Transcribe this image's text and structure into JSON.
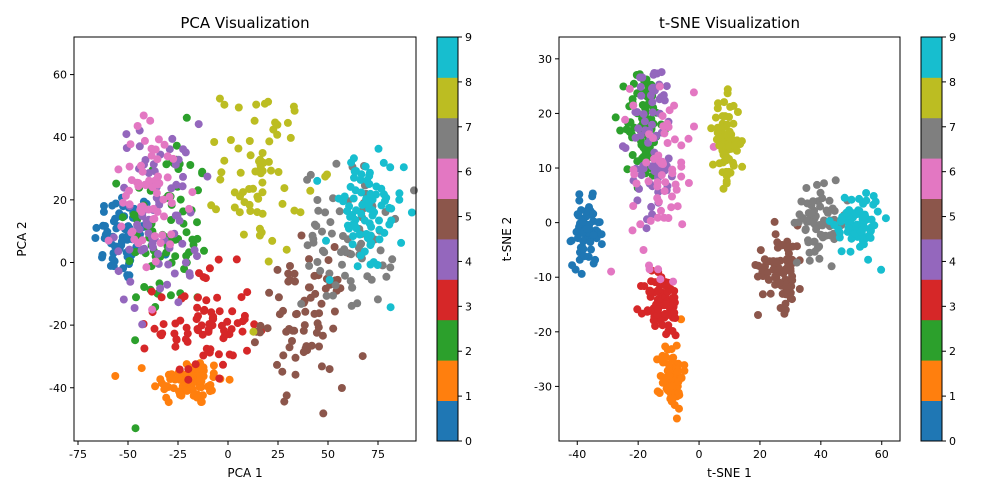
{
  "chart_data": [
    {
      "type": "scatter",
      "title": "PCA Visualization",
      "xlabel": "PCA 1",
      "ylabel": "PCA 2",
      "xlim": [
        -77,
        94
      ],
      "ylim": [
        -57,
        72
      ],
      "xticks": [
        -75,
        -50,
        -25,
        0,
        25,
        50,
        75
      ],
      "yticks": [
        -40,
        -20,
        0,
        20,
        40,
        60
      ],
      "grid": false,
      "colormap": "tab10",
      "colorbar": {
        "ticks": [
          0,
          1,
          2,
          3,
          4,
          5,
          6,
          7,
          8,
          9
        ],
        "range": [
          0,
          9
        ]
      },
      "clusters": [
        {
          "digit": 0,
          "cx": -52,
          "cy": 8,
          "sx": 10,
          "sy": 10,
          "n": 70
        },
        {
          "digit": 1,
          "cx": -20,
          "cy": -38,
          "sx": 12,
          "sy": 5,
          "n": 75
        },
        {
          "digit": 2,
          "cx": -30,
          "cy": 10,
          "sx": 14,
          "sy": 20,
          "n": 80
        },
        {
          "digit": 3,
          "cx": -12,
          "cy": -20,
          "sx": 16,
          "sy": 12,
          "n": 80
        },
        {
          "digit": 4,
          "cx": -35,
          "cy": 15,
          "sx": 14,
          "sy": 20,
          "n": 75
        },
        {
          "digit": 5,
          "cx": 38,
          "cy": -18,
          "sx": 14,
          "sy": 14,
          "n": 75
        },
        {
          "digit": 6,
          "cx": -38,
          "cy": 20,
          "sx": 14,
          "sy": 17,
          "n": 65
        },
        {
          "digit": 7,
          "cx": 60,
          "cy": 8,
          "sx": 15,
          "sy": 15,
          "n": 75
        },
        {
          "digit": 8,
          "cx": 18,
          "cy": 30,
          "sx": 14,
          "sy": 18,
          "n": 70
        },
        {
          "digit": 9,
          "cx": 68,
          "cy": 15,
          "sx": 13,
          "sy": 13,
          "n": 85
        }
      ]
    },
    {
      "type": "scatter",
      "title": "t-SNE Visualization",
      "xlabel": "t-SNE 1",
      "ylabel": "t-SNE 2",
      "xlim": [
        -46,
        66
      ],
      "ylim": [
        -40,
        34
      ],
      "xticks": [
        -40,
        -20,
        0,
        20,
        40,
        60
      ],
      "yticks": [
        -30,
        -20,
        -10,
        0,
        10,
        20,
        30
      ],
      "grid": false,
      "colormap": "tab10",
      "colorbar": {
        "ticks": [
          0,
          1,
          2,
          3,
          4,
          5,
          6,
          7,
          8,
          9
        ],
        "range": [
          0,
          9
        ]
      },
      "clusters": [
        {
          "digit": 0,
          "cx": -37,
          "cy": -2,
          "sx": 3,
          "sy": 4,
          "n": 70
        },
        {
          "digit": 1,
          "cx": -9,
          "cy": -28,
          "sx": 2.5,
          "sy": 4,
          "n": 80
        },
        {
          "digit": 2,
          "cx": -18,
          "cy": 18,
          "sx": 4,
          "sy": 7,
          "n": 80
        },
        {
          "digit": 3,
          "cx": -12,
          "cy": -15,
          "sx": 4,
          "sy": 4,
          "n": 80
        },
        {
          "digit": 4,
          "cx": -15,
          "cy": 15,
          "sx": 5,
          "sy": 10,
          "n": 70
        },
        {
          "digit": 5,
          "cx": 27,
          "cy": -8,
          "sx": 5,
          "sy": 5,
          "n": 75
        },
        {
          "digit": 6,
          "cx": -12,
          "cy": 10,
          "sx": 7,
          "sy": 12,
          "n": 65
        },
        {
          "digit": 7,
          "cx": 40,
          "cy": 0,
          "sx": 6,
          "sy": 4,
          "n": 70
        },
        {
          "digit": 8,
          "cx": 9,
          "cy": 15,
          "sx": 3,
          "sy": 5,
          "n": 70
        },
        {
          "digit": 9,
          "cx": 52,
          "cy": 0,
          "sx": 5,
          "sy": 4,
          "n": 80
        }
      ]
    }
  ],
  "palette": [
    "#1f77b4",
    "#ff7f0e",
    "#2ca02c",
    "#d62728",
    "#9467bd",
    "#8c564b",
    "#e377c2",
    "#7f7f7f",
    "#bcbd22",
    "#17becf"
  ]
}
